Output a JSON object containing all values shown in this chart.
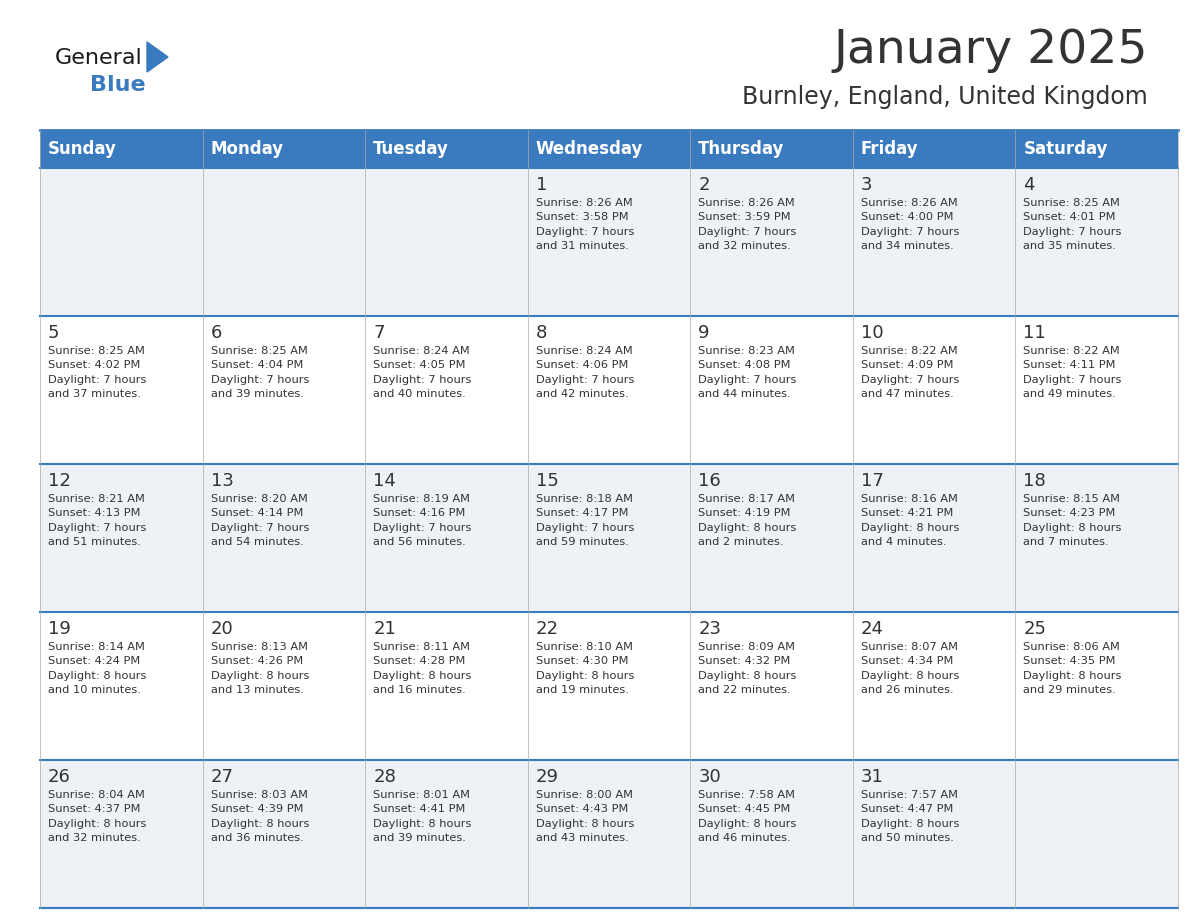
{
  "title": "January 2025",
  "subtitle": "Burnley, England, United Kingdom",
  "header_color": "#3a7abf",
  "header_text_color": "#ffffff",
  "cell_bg_even": "#eef2f7",
  "cell_bg_odd": "#ffffff",
  "border_color": "#3a7abf",
  "text_color": "#333333",
  "days_of_week": [
    "Sunday",
    "Monday",
    "Tuesday",
    "Wednesday",
    "Thursday",
    "Friday",
    "Saturday"
  ],
  "calendar": [
    [
      {
        "day": "",
        "info": ""
      },
      {
        "day": "",
        "info": ""
      },
      {
        "day": "",
        "info": ""
      },
      {
        "day": "1",
        "info": "Sunrise: 8:26 AM\nSunset: 3:58 PM\nDaylight: 7 hours\nand 31 minutes."
      },
      {
        "day": "2",
        "info": "Sunrise: 8:26 AM\nSunset: 3:59 PM\nDaylight: 7 hours\nand 32 minutes."
      },
      {
        "day": "3",
        "info": "Sunrise: 8:26 AM\nSunset: 4:00 PM\nDaylight: 7 hours\nand 34 minutes."
      },
      {
        "day": "4",
        "info": "Sunrise: 8:25 AM\nSunset: 4:01 PM\nDaylight: 7 hours\nand 35 minutes."
      }
    ],
    [
      {
        "day": "5",
        "info": "Sunrise: 8:25 AM\nSunset: 4:02 PM\nDaylight: 7 hours\nand 37 minutes."
      },
      {
        "day": "6",
        "info": "Sunrise: 8:25 AM\nSunset: 4:04 PM\nDaylight: 7 hours\nand 39 minutes."
      },
      {
        "day": "7",
        "info": "Sunrise: 8:24 AM\nSunset: 4:05 PM\nDaylight: 7 hours\nand 40 minutes."
      },
      {
        "day": "8",
        "info": "Sunrise: 8:24 AM\nSunset: 4:06 PM\nDaylight: 7 hours\nand 42 minutes."
      },
      {
        "day": "9",
        "info": "Sunrise: 8:23 AM\nSunset: 4:08 PM\nDaylight: 7 hours\nand 44 minutes."
      },
      {
        "day": "10",
        "info": "Sunrise: 8:22 AM\nSunset: 4:09 PM\nDaylight: 7 hours\nand 47 minutes."
      },
      {
        "day": "11",
        "info": "Sunrise: 8:22 AM\nSunset: 4:11 PM\nDaylight: 7 hours\nand 49 minutes."
      }
    ],
    [
      {
        "day": "12",
        "info": "Sunrise: 8:21 AM\nSunset: 4:13 PM\nDaylight: 7 hours\nand 51 minutes."
      },
      {
        "day": "13",
        "info": "Sunrise: 8:20 AM\nSunset: 4:14 PM\nDaylight: 7 hours\nand 54 minutes."
      },
      {
        "day": "14",
        "info": "Sunrise: 8:19 AM\nSunset: 4:16 PM\nDaylight: 7 hours\nand 56 minutes."
      },
      {
        "day": "15",
        "info": "Sunrise: 8:18 AM\nSunset: 4:17 PM\nDaylight: 7 hours\nand 59 minutes."
      },
      {
        "day": "16",
        "info": "Sunrise: 8:17 AM\nSunset: 4:19 PM\nDaylight: 8 hours\nand 2 minutes."
      },
      {
        "day": "17",
        "info": "Sunrise: 8:16 AM\nSunset: 4:21 PM\nDaylight: 8 hours\nand 4 minutes."
      },
      {
        "day": "18",
        "info": "Sunrise: 8:15 AM\nSunset: 4:23 PM\nDaylight: 8 hours\nand 7 minutes."
      }
    ],
    [
      {
        "day": "19",
        "info": "Sunrise: 8:14 AM\nSunset: 4:24 PM\nDaylight: 8 hours\nand 10 minutes."
      },
      {
        "day": "20",
        "info": "Sunrise: 8:13 AM\nSunset: 4:26 PM\nDaylight: 8 hours\nand 13 minutes."
      },
      {
        "day": "21",
        "info": "Sunrise: 8:11 AM\nSunset: 4:28 PM\nDaylight: 8 hours\nand 16 minutes."
      },
      {
        "day": "22",
        "info": "Sunrise: 8:10 AM\nSunset: 4:30 PM\nDaylight: 8 hours\nand 19 minutes."
      },
      {
        "day": "23",
        "info": "Sunrise: 8:09 AM\nSunset: 4:32 PM\nDaylight: 8 hours\nand 22 minutes."
      },
      {
        "day": "24",
        "info": "Sunrise: 8:07 AM\nSunset: 4:34 PM\nDaylight: 8 hours\nand 26 minutes."
      },
      {
        "day": "25",
        "info": "Sunrise: 8:06 AM\nSunset: 4:35 PM\nDaylight: 8 hours\nand 29 minutes."
      }
    ],
    [
      {
        "day": "26",
        "info": "Sunrise: 8:04 AM\nSunset: 4:37 PM\nDaylight: 8 hours\nand 32 minutes."
      },
      {
        "day": "27",
        "info": "Sunrise: 8:03 AM\nSunset: 4:39 PM\nDaylight: 8 hours\nand 36 minutes."
      },
      {
        "day": "28",
        "info": "Sunrise: 8:01 AM\nSunset: 4:41 PM\nDaylight: 8 hours\nand 39 minutes."
      },
      {
        "day": "29",
        "info": "Sunrise: 8:00 AM\nSunset: 4:43 PM\nDaylight: 8 hours\nand 43 minutes."
      },
      {
        "day": "30",
        "info": "Sunrise: 7:58 AM\nSunset: 4:45 PM\nDaylight: 8 hours\nand 46 minutes."
      },
      {
        "day": "31",
        "info": "Sunrise: 7:57 AM\nSunset: 4:47 PM\nDaylight: 8 hours\nand 50 minutes."
      },
      {
        "day": "",
        "info": ""
      }
    ]
  ],
  "logo_color_general": "#1a1a1a",
  "logo_color_blue": "#3a7abf",
  "logo_color_triangle": "#3a7abf"
}
